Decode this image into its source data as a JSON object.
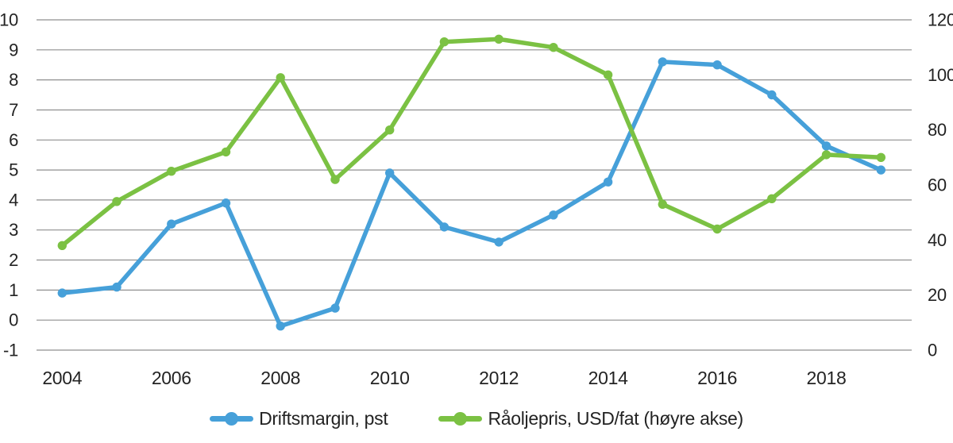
{
  "colors": {
    "background": "#FFFFFF",
    "grid": "#8F8F8F",
    "text": "#232323",
    "driftsmargin_blue": "#46A0D9",
    "raoljepris_green": "#7BC143"
  },
  "legend": {
    "position": "bottom-center"
  },
  "chart_data": {
    "type": "line",
    "title": "",
    "x": [
      2004,
      2005,
      2006,
      2007,
      2008,
      2009,
      2010,
      2011,
      2012,
      2013,
      2014,
      2015,
      2016,
      2017,
      2018,
      2019
    ],
    "x_axis": {
      "tick_labels": [
        "2004",
        "2006",
        "2008",
        "2010",
        "2012",
        "2014",
        "2016",
        "2018"
      ]
    },
    "left_axis": {
      "label": "",
      "min": -1,
      "max": 10,
      "tick_step": 1,
      "ticks": [
        10,
        9,
        8,
        7,
        6,
        5,
        4,
        3,
        2,
        1,
        0,
        -1
      ]
    },
    "right_axis": {
      "label": "",
      "min": 0,
      "max": 120,
      "tick_step": 20,
      "ticks": [
        120,
        100,
        80,
        60,
        40,
        20,
        0
      ]
    },
    "grid": "horizontal",
    "legend_position": "bottom",
    "series": [
      {
        "name": "Driftsmargin, pst",
        "axis": "left",
        "color": "#46A0D9",
        "marker": "circle",
        "values": [
          0.9,
          1.1,
          3.2,
          3.9,
          -0.2,
          0.4,
          4.9,
          3.1,
          2.6,
          3.5,
          4.6,
          8.6,
          8.5,
          7.5,
          5.8,
          5.0
        ]
      },
      {
        "name": "Råoljepris, USD/fat (høyre akse)",
        "axis": "right",
        "color": "#7BC143",
        "marker": "circle",
        "values": [
          38,
          54,
          65,
          72,
          99,
          62,
          80,
          112,
          113,
          110,
          100,
          53,
          44,
          55,
          71,
          70
        ]
      }
    ]
  }
}
